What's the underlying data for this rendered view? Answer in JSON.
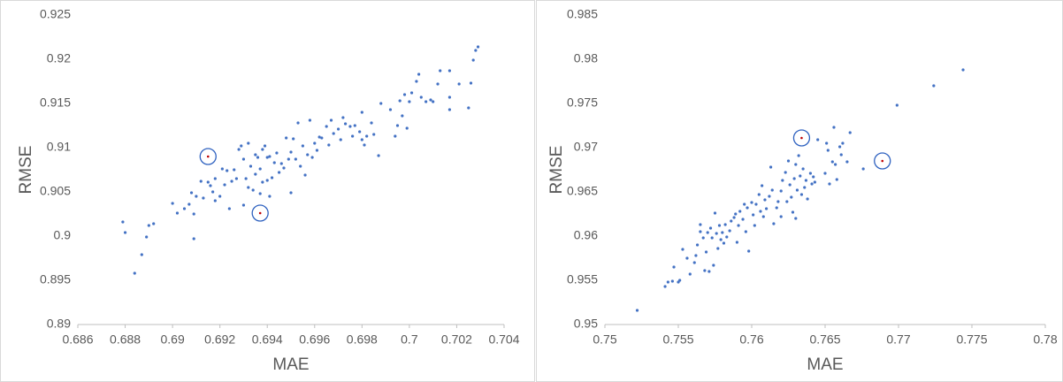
{
  "chart_data": [
    {
      "type": "scatter",
      "x_label": "MAE",
      "y_label": "RMSE",
      "xlim": [
        0.686,
        0.704
      ],
      "ylim": [
        0.89,
        0.925
      ],
      "xticks": [
        0.686,
        0.688,
        0.69,
        0.692,
        0.694,
        0.696,
        0.698,
        0.7,
        0.702,
        0.704
      ],
      "yticks": [
        0.89,
        0.895,
        0.9,
        0.905,
        0.91,
        0.915,
        0.92,
        0.925
      ],
      "series": [
        {
          "color": "#4472c4",
          "x": [
            0.6879,
            0.688,
            0.6884,
            0.6887,
            0.6889,
            0.689,
            0.6892,
            0.69,
            0.6902,
            0.6905,
            0.6907,
            0.6908,
            0.6909,
            0.6909,
            0.691,
            0.6912,
            0.6913,
            0.6915,
            0.6916,
            0.6917,
            0.6918,
            0.6918,
            0.692,
            0.6921,
            0.6922,
            0.6923,
            0.6924,
            0.6925,
            0.6926,
            0.6927,
            0.6928,
            0.6929,
            0.693,
            0.693,
            0.6931,
            0.6932,
            0.6932,
            0.6933,
            0.6934,
            0.6935,
            0.6935,
            0.6936,
            0.6937,
            0.6937,
            0.6938,
            0.6938,
            0.6939,
            0.694,
            0.694,
            0.6941,
            0.6941,
            0.6942,
            0.6943,
            0.6944,
            0.6945,
            0.6946,
            0.6947,
            0.6948,
            0.6949,
            0.695,
            0.695,
            0.6951,
            0.6952,
            0.6953,
            0.6954,
            0.6955,
            0.6956,
            0.6957,
            0.6958,
            0.6959,
            0.696,
            0.6961,
            0.6962,
            0.6963,
            0.6965,
            0.6966,
            0.6967,
            0.6968,
            0.697,
            0.6971,
            0.6972,
            0.6973,
            0.6975,
            0.6976,
            0.6977,
            0.6979,
            0.698,
            0.698,
            0.6981,
            0.6982,
            0.6984,
            0.6985,
            0.6987,
            0.6988,
            0.6992,
            0.6994,
            0.6995,
            0.6996,
            0.6997,
            0.6998,
            0.6999,
            0.7,
            0.7001,
            0.7003,
            0.7004,
            0.7005,
            0.7007,
            0.7009,
            0.701,
            0.7012,
            0.7013,
            0.7017,
            0.7017,
            0.7017,
            0.7021,
            0.7025,
            0.7026,
            0.7027,
            0.7028,
            0.7029
          ],
          "values": [
            0.9016,
            0.9004,
            0.8958,
            0.8979,
            0.8999,
            0.9012,
            0.9014,
            0.9037,
            0.9026,
            0.9031,
            0.9036,
            0.9049,
            0.8997,
            0.9025,
            0.9045,
            0.9062,
            0.9043,
            0.9061,
            0.9057,
            0.905,
            0.9065,
            0.904,
            0.9045,
            0.9076,
            0.9058,
            0.9074,
            0.9031,
            0.9062,
            0.9075,
            0.9065,
            0.9098,
            0.9102,
            0.9087,
            0.9035,
            0.9065,
            0.9105,
            0.9055,
            0.9079,
            0.9052,
            0.9092,
            0.907,
            0.9089,
            0.9048,
            0.9076,
            0.9061,
            0.9098,
            0.9102,
            0.9089,
            0.9063,
            0.909,
            0.9045,
            0.9066,
            0.9083,
            0.9094,
            0.9072,
            0.9082,
            0.9077,
            0.9111,
            0.9087,
            0.9095,
            0.9049,
            0.911,
            0.9087,
            0.9128,
            0.9079,
            0.9102,
            0.9069,
            0.9092,
            0.9131,
            0.9089,
            0.9105,
            0.9097,
            0.9112,
            0.9111,
            0.9124,
            0.9103,
            0.9131,
            0.9116,
            0.9121,
            0.9109,
            0.9134,
            0.9127,
            0.9124,
            0.9113,
            0.9125,
            0.9118,
            0.9109,
            0.914,
            0.9103,
            0.9113,
            0.9128,
            0.9115,
            0.9091,
            0.915,
            0.9143,
            0.9113,
            0.9125,
            0.9153,
            0.9136,
            0.916,
            0.9122,
            0.9152,
            0.9162,
            0.9175,
            0.9183,
            0.9157,
            0.9152,
            0.9154,
            0.9152,
            0.9172,
            0.9187,
            0.9143,
            0.9187,
            0.9157,
            0.9172,
            0.9145,
            0.9173,
            0.9199,
            0.921,
            0.9214
          ]
        },
        {
          "color": "#c00000",
          "ring_color": "#2f62c0",
          "x": [
            0.6915,
            0.6937
          ],
          "values": [
            0.909,
            0.9026
          ]
        }
      ]
    },
    {
      "type": "scatter",
      "x_label": "MAE",
      "y_label": "RMSE",
      "xlim": [
        0.75,
        0.78
      ],
      "ylim": [
        0.95,
        0.985
      ],
      "xticks": [
        0.75,
        0.755,
        0.76,
        0.765,
        0.77,
        0.775,
        0.78
      ],
      "yticks": [
        0.95,
        0.955,
        0.96,
        0.965,
        0.97,
        0.975,
        0.98,
        0.985
      ],
      "series": [
        {
          "color": "#4472c4",
          "x": [
            0.7522,
            0.7541,
            0.7543,
            0.7546,
            0.7547,
            0.755,
            0.7551,
            0.7553,
            0.7556,
            0.7558,
            0.7561,
            0.7562,
            0.7563,
            0.7565,
            0.7565,
            0.7567,
            0.7568,
            0.7569,
            0.757,
            0.7571,
            0.7572,
            0.7573,
            0.7574,
            0.7575,
            0.7576,
            0.7577,
            0.7578,
            0.7579,
            0.758,
            0.7581,
            0.7582,
            0.7583,
            0.7585,
            0.7586,
            0.7588,
            0.7589,
            0.759,
            0.7591,
            0.7592,
            0.7594,
            0.7595,
            0.7596,
            0.7597,
            0.7598,
            0.76,
            0.7601,
            0.7602,
            0.7603,
            0.7605,
            0.7606,
            0.7607,
            0.7608,
            0.7609,
            0.761,
            0.7612,
            0.7613,
            0.7614,
            0.7615,
            0.7617,
            0.7618,
            0.762,
            0.762,
            0.7621,
            0.7623,
            0.7624,
            0.7625,
            0.7626,
            0.7627,
            0.7628,
            0.7629,
            0.763,
            0.763,
            0.7631,
            0.7632,
            0.7633,
            0.7634,
            0.7635,
            0.7636,
            0.7637,
            0.7638,
            0.764,
            0.7641,
            0.7642,
            0.7643,
            0.7645,
            0.765,
            0.7651,
            0.7652,
            0.7653,
            0.7655,
            0.7656,
            0.7657,
            0.7658,
            0.766,
            0.7661,
            0.7662,
            0.7665,
            0.7667,
            0.7676,
            0.7699,
            0.7724,
            0.7744
          ],
          "values": [
            0.9516,
            0.9543,
            0.9548,
            0.9549,
            0.9565,
            0.9548,
            0.955,
            0.9585,
            0.9575,
            0.9557,
            0.957,
            0.9578,
            0.959,
            0.9605,
            0.9613,
            0.9598,
            0.9561,
            0.9582,
            0.9604,
            0.956,
            0.9609,
            0.9598,
            0.9567,
            0.9626,
            0.9603,
            0.9586,
            0.9612,
            0.9596,
            0.9604,
            0.9592,
            0.9613,
            0.9599,
            0.9606,
            0.9617,
            0.9621,
            0.9625,
            0.9593,
            0.9612,
            0.9628,
            0.9619,
            0.9636,
            0.9605,
            0.9632,
            0.9583,
            0.9638,
            0.9624,
            0.9612,
            0.9636,
            0.9647,
            0.9628,
            0.9657,
            0.9622,
            0.9641,
            0.9631,
            0.9645,
            0.9678,
            0.9652,
            0.9614,
            0.9632,
            0.9639,
            0.9622,
            0.9651,
            0.9663,
            0.9672,
            0.9639,
            0.9685,
            0.9658,
            0.9644,
            0.9627,
            0.9665,
            0.962,
            0.9681,
            0.9652,
            0.9691,
            0.9668,
            0.9647,
            0.9676,
            0.9655,
            0.9663,
            0.9642,
            0.9671,
            0.9659,
            0.9667,
            0.9661,
            0.9709,
            0.9671,
            0.9705,
            0.9697,
            0.9659,
            0.9684,
            0.9723,
            0.9681,
            0.9664,
            0.9701,
            0.9692,
            0.9705,
            0.9684,
            0.9717,
            0.9676,
            0.9748,
            0.977,
            0.9788
          ]
        },
        {
          "color": "#c00000",
          "ring_color": "#2f62c0",
          "x": [
            0.7634,
            0.7689
          ],
          "values": [
            0.9711,
            0.9685
          ]
        }
      ]
    }
  ]
}
